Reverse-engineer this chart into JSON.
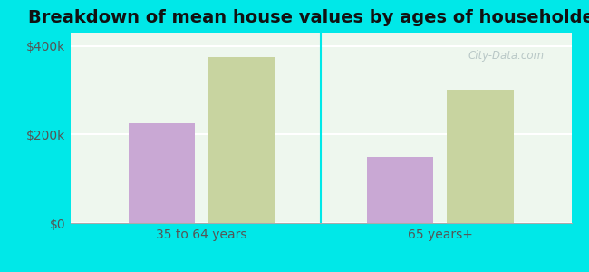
{
  "title": "Breakdown of mean house values by ages of householders",
  "categories": [
    "35 to 64 years",
    "65 years+"
  ],
  "series": {
    "Toone": [
      225000,
      150000
    ],
    "Tennessee": [
      375000,
      300000
    ]
  },
  "bar_colors": {
    "Toone": "#c9a8d4",
    "Tennessee": "#c8d4a0"
  },
  "background_color": "#00e8e8",
  "ylim": [
    0,
    430000
  ],
  "yticks": [
    0,
    200000,
    400000
  ],
  "ytick_labels": [
    "$0",
    "$200k",
    "$400k"
  ],
  "bar_width": 0.28,
  "title_fontsize": 14,
  "tick_fontsize": 10,
  "legend_fontsize": 11,
  "watermark": "City-Data.com"
}
